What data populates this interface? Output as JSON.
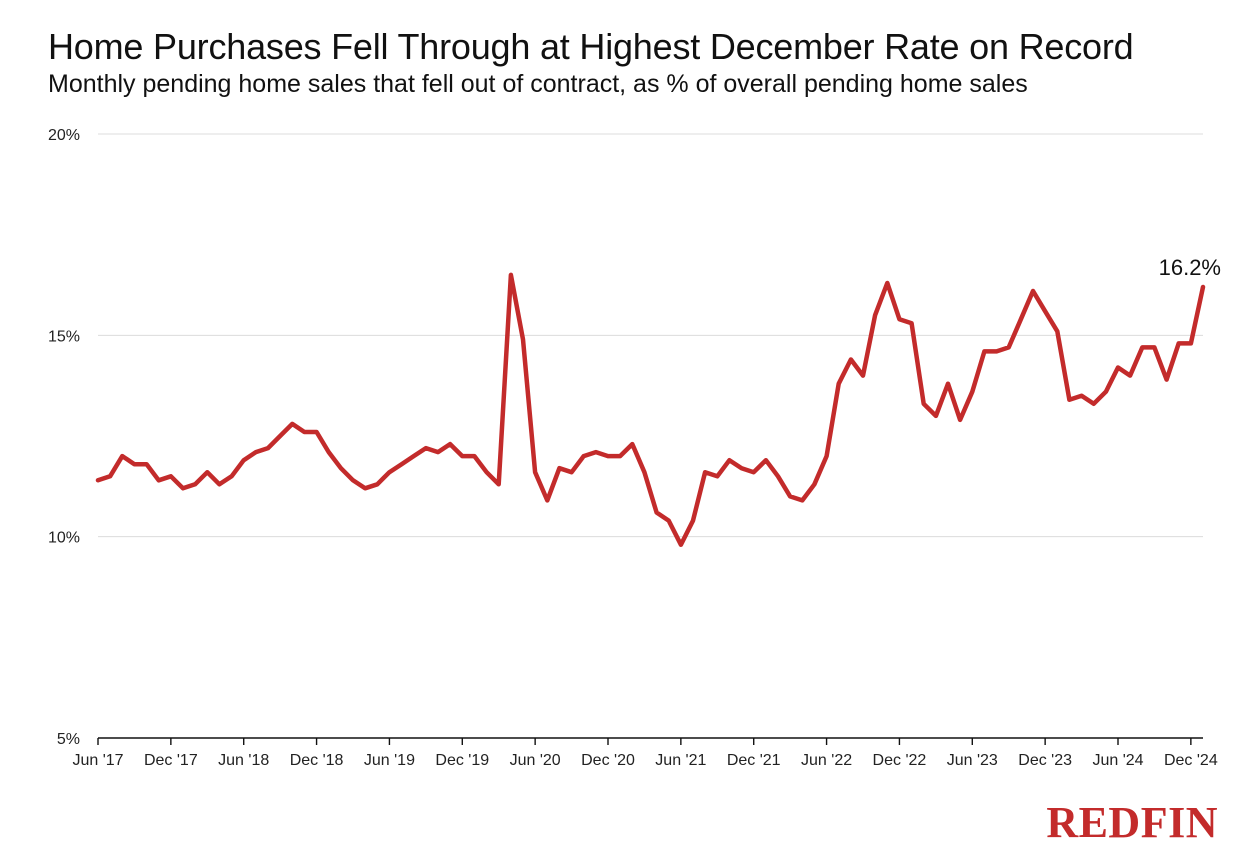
{
  "chart_data": {
    "type": "line",
    "title": "Home Purchases Fell Through at Highest December Rate on Record",
    "subtitle": "Monthly pending home sales that fell out of contract, as % of overall pending home sales",
    "xlabel": "",
    "ylabel": "",
    "ylim": [
      5,
      20
    ],
    "yticks": [
      "5%",
      "10%",
      "15%",
      "20%"
    ],
    "ytick_values": [
      5,
      10,
      15,
      20
    ],
    "xtick_labels": [
      "Jun '17",
      "Dec '17",
      "Jun '18",
      "Dec '18",
      "Jun '19",
      "Dec '19",
      "Jun '20",
      "Dec '20",
      "Jun '21",
      "Dec '21",
      "Jun '22",
      "Dec '22",
      "Jun '23",
      "Dec '23",
      "Jun '24",
      "Dec '24"
    ],
    "grid": "horizontal",
    "line_color": "#c32b2b",
    "x_start": "Jun 2017",
    "x_end": "Dec 2024",
    "values": [
      11.4,
      11.5,
      12.0,
      11.8,
      11.8,
      11.4,
      11.5,
      11.2,
      11.3,
      11.6,
      11.3,
      11.5,
      11.9,
      12.1,
      12.2,
      12.5,
      12.8,
      12.6,
      12.6,
      12.1,
      11.7,
      11.4,
      11.2,
      11.3,
      11.6,
      11.8,
      12.0,
      12.2,
      12.1,
      12.3,
      12.0,
      12.0,
      11.6,
      11.3,
      16.5,
      14.9,
      11.6,
      10.9,
      11.7,
      11.6,
      12.0,
      12.1,
      12.0,
      12.0,
      12.3,
      11.6,
      10.6,
      10.4,
      9.8,
      10.4,
      11.6,
      11.5,
      11.9,
      11.7,
      11.6,
      11.9,
      11.5,
      11.0,
      10.9,
      11.3,
      12.0,
      13.8,
      14.4,
      14.0,
      15.5,
      16.3,
      15.4,
      15.3,
      13.3,
      13.0,
      13.8,
      12.9,
      13.6,
      14.6,
      14.6,
      14.7,
      15.4,
      16.1,
      15.6,
      15.1,
      13.4,
      13.5,
      13.3,
      13.6,
      14.2,
      14.0,
      14.7,
      14.7,
      13.9,
      14.8,
      14.8,
      16.2
    ],
    "annotation": "16.2%"
  },
  "branding": {
    "logo_text": "REDFIN"
  }
}
